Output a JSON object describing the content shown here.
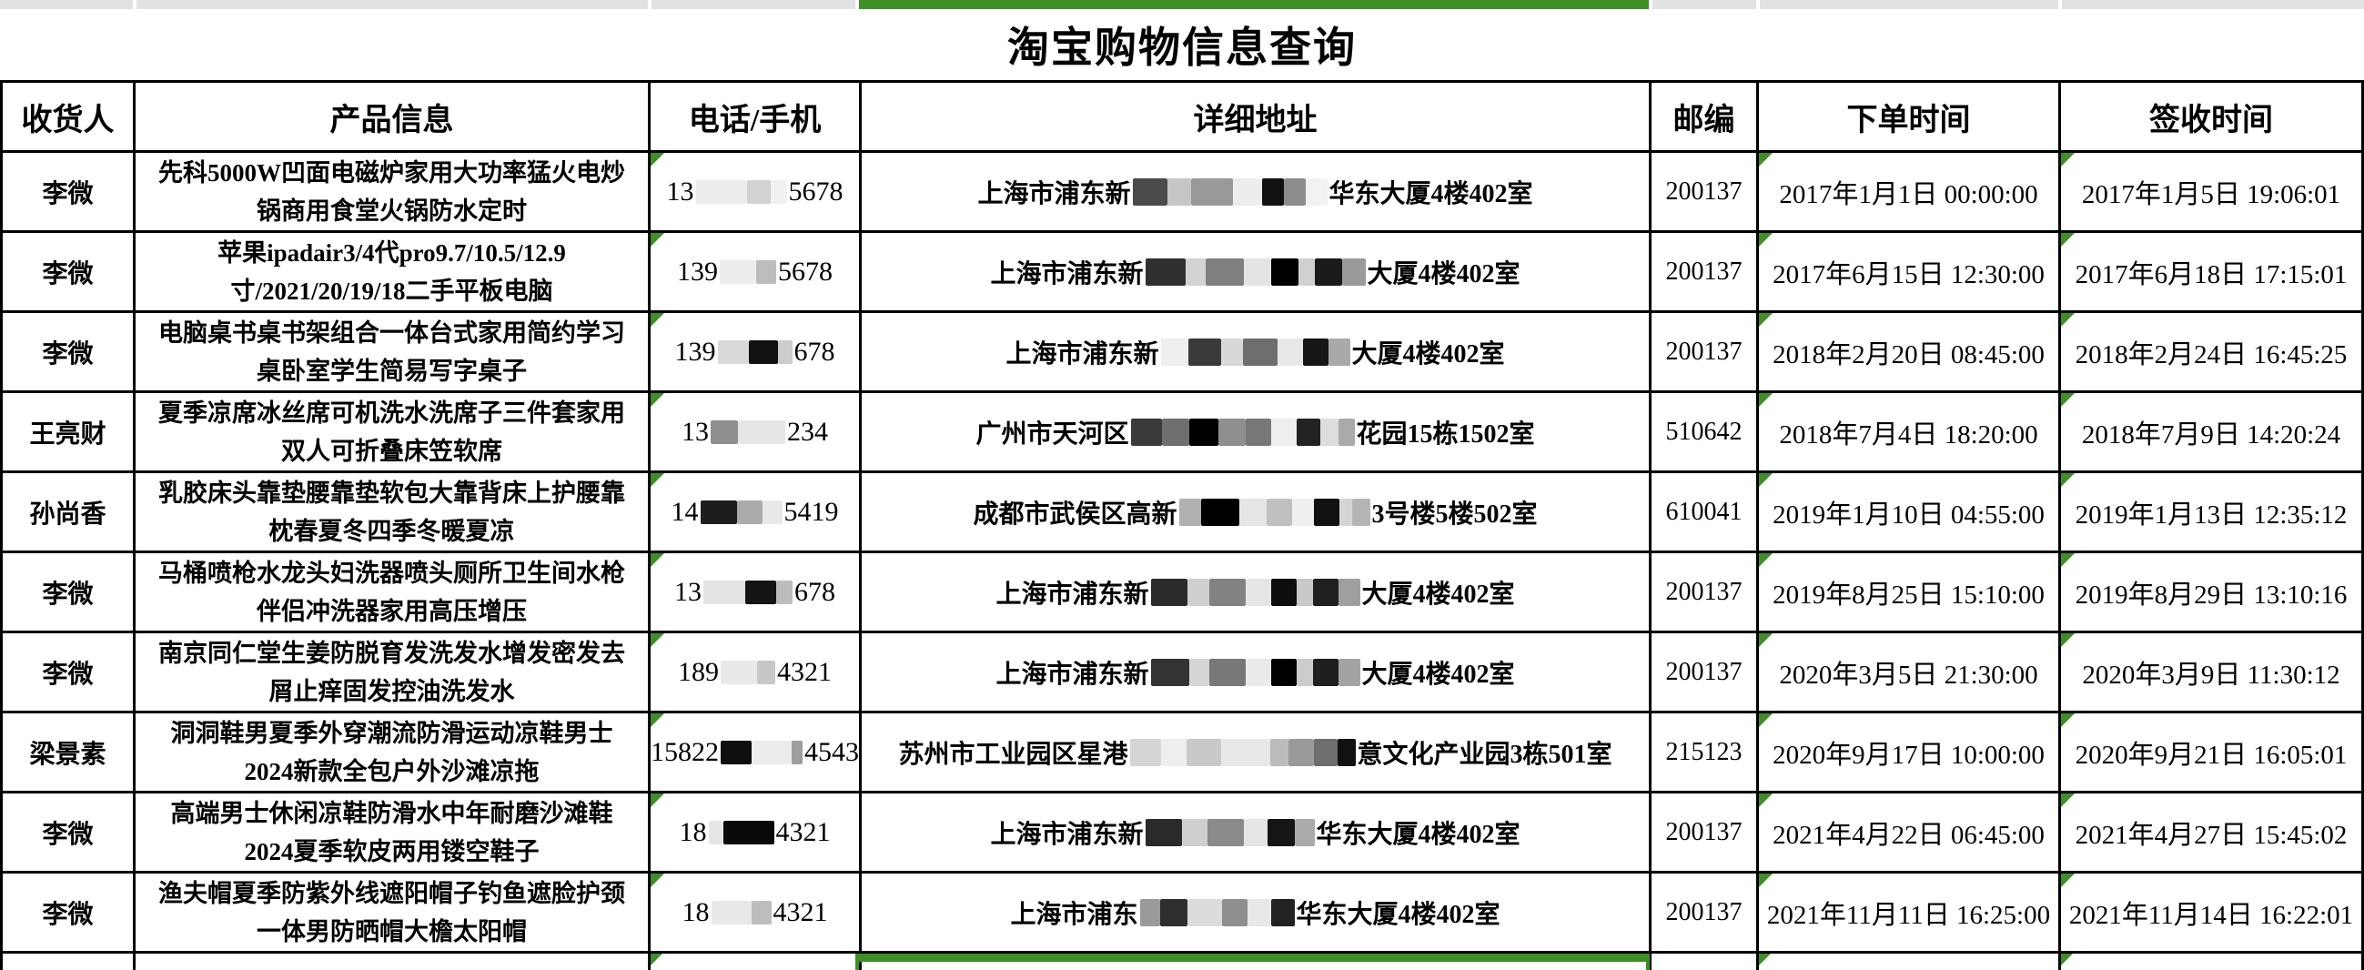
{
  "title": "淘宝购物信息查询",
  "columns": [
    {
      "label": "收货人"
    },
    {
      "label": "产品信息"
    },
    {
      "label": "电话/手机"
    },
    {
      "label": "详细地址"
    },
    {
      "label": "邮编"
    },
    {
      "label": "下单时间"
    },
    {
      "label": "签收时间"
    }
  ],
  "colors": {
    "selection_green": "#3f8e27",
    "grid_border": "#000000",
    "column_header_gray": "#e2e2e2"
  },
  "rows": [
    {
      "recipient": "李微",
      "product": "先科5000W凹面电磁炉家用大功率猛火电炒锅商用食堂火锅防水定时",
      "phone": {
        "prefix": "13",
        "blocks": [
          [
            "#ececec",
            56
          ],
          [
            "#d2d2d2",
            26
          ],
          [
            "#f1f1f1",
            18
          ]
        ],
        "suffix": "5678"
      },
      "address": {
        "prefix": "上海市浦东新",
        "blocks": [
          [
            "#4a4a4a",
            38
          ],
          [
            "#c6c6c6",
            26
          ],
          [
            "#999999",
            46
          ],
          [
            "#ededed",
            32
          ],
          [
            "#111111",
            24
          ],
          [
            "#8d8d8d",
            24
          ],
          [
            "#f2f2f2",
            24
          ]
        ],
        "suffix": "华东大厦4楼402室"
      },
      "postcode": "200137",
      "order_time": "2017年1月1日 00:00:00",
      "sign_time": "2017年1月5日 19:06:01"
    },
    {
      "recipient": "李微",
      "product": "苹果ipadair3/4代pro9.7/10.5/12.9寸/2021/20/19/18二手平板电脑",
      "phone": {
        "prefix": "139",
        "blocks": [
          [
            "#ededed",
            40
          ],
          [
            "#bdbdbd",
            22
          ]
        ],
        "suffix": "5678"
      },
      "address": {
        "prefix": "上海市浦东新",
        "blocks": [
          [
            "#2f2f2f",
            44
          ],
          [
            "#d3d3d3",
            22
          ],
          [
            "#7f7f7f",
            42
          ],
          [
            "#e3e3e3",
            30
          ],
          [
            "#000000",
            30
          ],
          [
            "#d0d0d0",
            18
          ],
          [
            "#1a1a1a",
            30
          ],
          [
            "#9a9a9a",
            26
          ]
        ],
        "suffix": "大厦4楼402室"
      },
      "postcode": "200137",
      "order_time": "2017年6月15日 12:30:00",
      "sign_time": "2017年6月18日 17:15:01"
    },
    {
      "recipient": "李微",
      "product": "电脑桌书桌书架组合一体台式家用简约学习桌卧室学生简易写字桌子",
      "phone": {
        "prefix": "139",
        "blocks": [
          [
            "#dadada",
            34
          ],
          [
            "#111111",
            32
          ],
          [
            "#cccccc",
            16
          ]
        ],
        "suffix": "678"
      },
      "address": {
        "prefix": "上海市浦东新",
        "blocks": [
          [
            "#efefef",
            30
          ],
          [
            "#3a3a3a",
            36
          ],
          [
            "#d8d8d8",
            24
          ],
          [
            "#6e6e6e",
            38
          ],
          [
            "#e8e8e8",
            28
          ],
          [
            "#161616",
            28
          ],
          [
            "#a9a9a9",
            24
          ]
        ],
        "suffix": "大厦4楼402室"
      },
      "postcode": "200137",
      "order_time": "2018年2月20日 08:45:00",
      "sign_time": "2018年2月24日 16:45:25"
    },
    {
      "recipient": "王亮财",
      "product": "夏季凉席冰丝席可机洗水洗席子三件套家用双人可折叠床笠软席",
      "phone": {
        "prefix": "13",
        "blocks": [
          [
            "#8f8f8f",
            30
          ],
          [
            "#e6e6e6",
            52
          ]
        ],
        "suffix": "234"
      },
      "address": {
        "prefix": "广州市天河区",
        "blocks": [
          [
            "#3a3a3a",
            34
          ],
          [
            "#6f6f6f",
            30
          ],
          [
            "#000000",
            32
          ],
          [
            "#8f8f8f",
            30
          ],
          [
            "#777777",
            28
          ],
          [
            "#eeeeee",
            28
          ],
          [
            "#222222",
            26
          ],
          [
            "#dddddd",
            20
          ],
          [
            "#aaaaaa",
            18
          ]
        ],
        "suffix": "花园15栋1502室"
      },
      "postcode": "510642",
      "order_time": "2018年7月4日 18:20:00",
      "sign_time": "2018年7月9日 14:20:24"
    },
    {
      "recipient": "孙尚香",
      "product": "乳胶床头靠垫腰靠垫软包大靠背床上护腰靠枕春夏冬四季冬暖夏凉",
      "phone": {
        "prefix": "14",
        "blocks": [
          [
            "#1d1d1d",
            40
          ],
          [
            "#ababab",
            28
          ],
          [
            "#e9e9e9",
            22
          ]
        ],
        "suffix": "5419"
      },
      "address": {
        "prefix": "成都市武侯区高新",
        "blocks": [
          [
            "#b0b0b0",
            24
          ],
          [
            "#000000",
            42
          ],
          [
            "#e5e5e5",
            30
          ],
          [
            "#c0c0c0",
            28
          ],
          [
            "#efefef",
            24
          ],
          [
            "#111111",
            28
          ],
          [
            "#d5d5d5",
            14
          ],
          [
            "#b5b5b5",
            20
          ]
        ],
        "suffix": "3号楼5楼502室"
      },
      "postcode": "610041",
      "order_time": "2019年1月10日 04:55:00",
      "sign_time": "2019年1月13日 12:35:12"
    },
    {
      "recipient": "李微",
      "product": "马桶喷枪水龙头妇洗器喷头厕所卫生间水枪伴侣冲洗器家用高压增压",
      "phone": {
        "prefix": "13",
        "blocks": [
          [
            "#e3e3e3",
            46
          ],
          [
            "#141414",
            34
          ],
          [
            "#bdbdbd",
            18
          ]
        ],
        "suffix": "678"
      },
      "address": {
        "prefix": "上海市浦东新",
        "blocks": [
          [
            "#2b2b2b",
            40
          ],
          [
            "#cfcfcf",
            24
          ],
          [
            "#828282",
            40
          ],
          [
            "#e5e5e5",
            28
          ],
          [
            "#0d0d0d",
            28
          ],
          [
            "#c9c9c9",
            18
          ],
          [
            "#202020",
            28
          ],
          [
            "#9f9f9f",
            24
          ]
        ],
        "suffix": "大厦4楼402室"
      },
      "postcode": "200137",
      "order_time": "2019年8月25日 15:10:00",
      "sign_time": "2019年8月29日 13:10:16"
    },
    {
      "recipient": "李微",
      "product": "南京同仁堂生姜防脱育发洗发水增发密发去屑止痒固发控油洗发水",
      "phone": {
        "prefix": "189",
        "blocks": [
          [
            "#e9e9e9",
            40
          ],
          [
            "#c7c7c7",
            20
          ]
        ],
        "suffix": "4321"
      },
      "address": {
        "prefix": "上海市浦东新",
        "blocks": [
          [
            "#333333",
            42
          ],
          [
            "#d6d6d6",
            22
          ],
          [
            "#787878",
            40
          ],
          [
            "#eaeaea",
            28
          ],
          [
            "#000000",
            28
          ],
          [
            "#cccccc",
            18
          ],
          [
            "#1f1f1f",
            28
          ],
          [
            "#a3a3a3",
            24
          ]
        ],
        "suffix": "大厦4楼402室"
      },
      "postcode": "200137",
      "order_time": "2020年3月5日 21:30:00",
      "sign_time": "2020年3月9日 11:30:12"
    },
    {
      "recipient": "梁景素",
      "product": "洞洞鞋男夏季外穿潮流防滑运动凉鞋男士2024新款全包户外沙滩凉拖",
      "phone": {
        "prefix": "15822",
        "blocks": [
          [
            "#0f0f0f",
            34
          ],
          [
            "#ececec",
            44
          ],
          [
            "#9e9e9e",
            12
          ]
        ],
        "suffix": "4543"
      },
      "address": {
        "prefix": "苏州市工业园区星港",
        "blocks": [
          [
            "#d5d5d5",
            34
          ],
          [
            "#eeeeee",
            28
          ],
          [
            "#c9c9c9",
            38
          ],
          [
            "#e8e8e8",
            54
          ],
          [
            "#bbbbbb",
            20
          ],
          [
            "#9a9a9a",
            28
          ],
          [
            "#6e6e6e",
            26
          ],
          [
            "#111111",
            20
          ]
        ],
        "suffix": "意文化产业园3栋501室"
      },
      "postcode": "215123",
      "order_time": "2020年9月17日 10:00:00",
      "sign_time": "2020年9月21日 16:05:01"
    },
    {
      "recipient": "李微",
      "product": "高端男士休闲凉鞋防滑水中年耐磨沙滩鞋2024夏季软皮两用镂空鞋子",
      "phone": {
        "prefix": "18",
        "blocks": [
          [
            "#e6e6e6",
            16
          ],
          [
            "#0a0a0a",
            56
          ]
        ],
        "suffix": "4321"
      },
      "address": {
        "prefix": "上海市浦东新",
        "blocks": [
          [
            "#2a2a2a",
            40
          ],
          [
            "#cfcfcf",
            28
          ],
          [
            "#8a8a8a",
            40
          ],
          [
            "#e5e5e5",
            26
          ],
          [
            "#151515",
            30
          ],
          [
            "#aaaaaa",
            22
          ]
        ],
        "suffix": "华东大厦4楼402室"
      },
      "postcode": "200137",
      "order_time": "2021年4月22日 06:45:00",
      "sign_time": "2021年4月27日 15:45:02"
    },
    {
      "recipient": "李微",
      "product": "渔夫帽夏季防紫外线遮阳帽子钓鱼遮脸护颈一体男防晒帽大檐太阳帽",
      "phone": {
        "prefix": "18",
        "blocks": [
          [
            "#e8e8e8",
            44
          ],
          [
            "#bdbdbd",
            22
          ]
        ],
        "suffix": "4321"
      },
      "address": {
        "prefix": "上海市浦东",
        "blocks": [
          [
            "#9a9a9a",
            22
          ],
          [
            "#2f2f2f",
            30
          ],
          [
            "#dcdcdc",
            38
          ],
          [
            "#8f8f8f",
            28
          ],
          [
            "#e8e8e8",
            26
          ],
          [
            "#222222",
            26
          ]
        ],
        "suffix": "华东大厦4楼402室"
      },
      "postcode": "200137",
      "order_time": "2021年11月11日 16:25:00",
      "sign_time": "2021年11月14日 16:22:01"
    }
  ]
}
